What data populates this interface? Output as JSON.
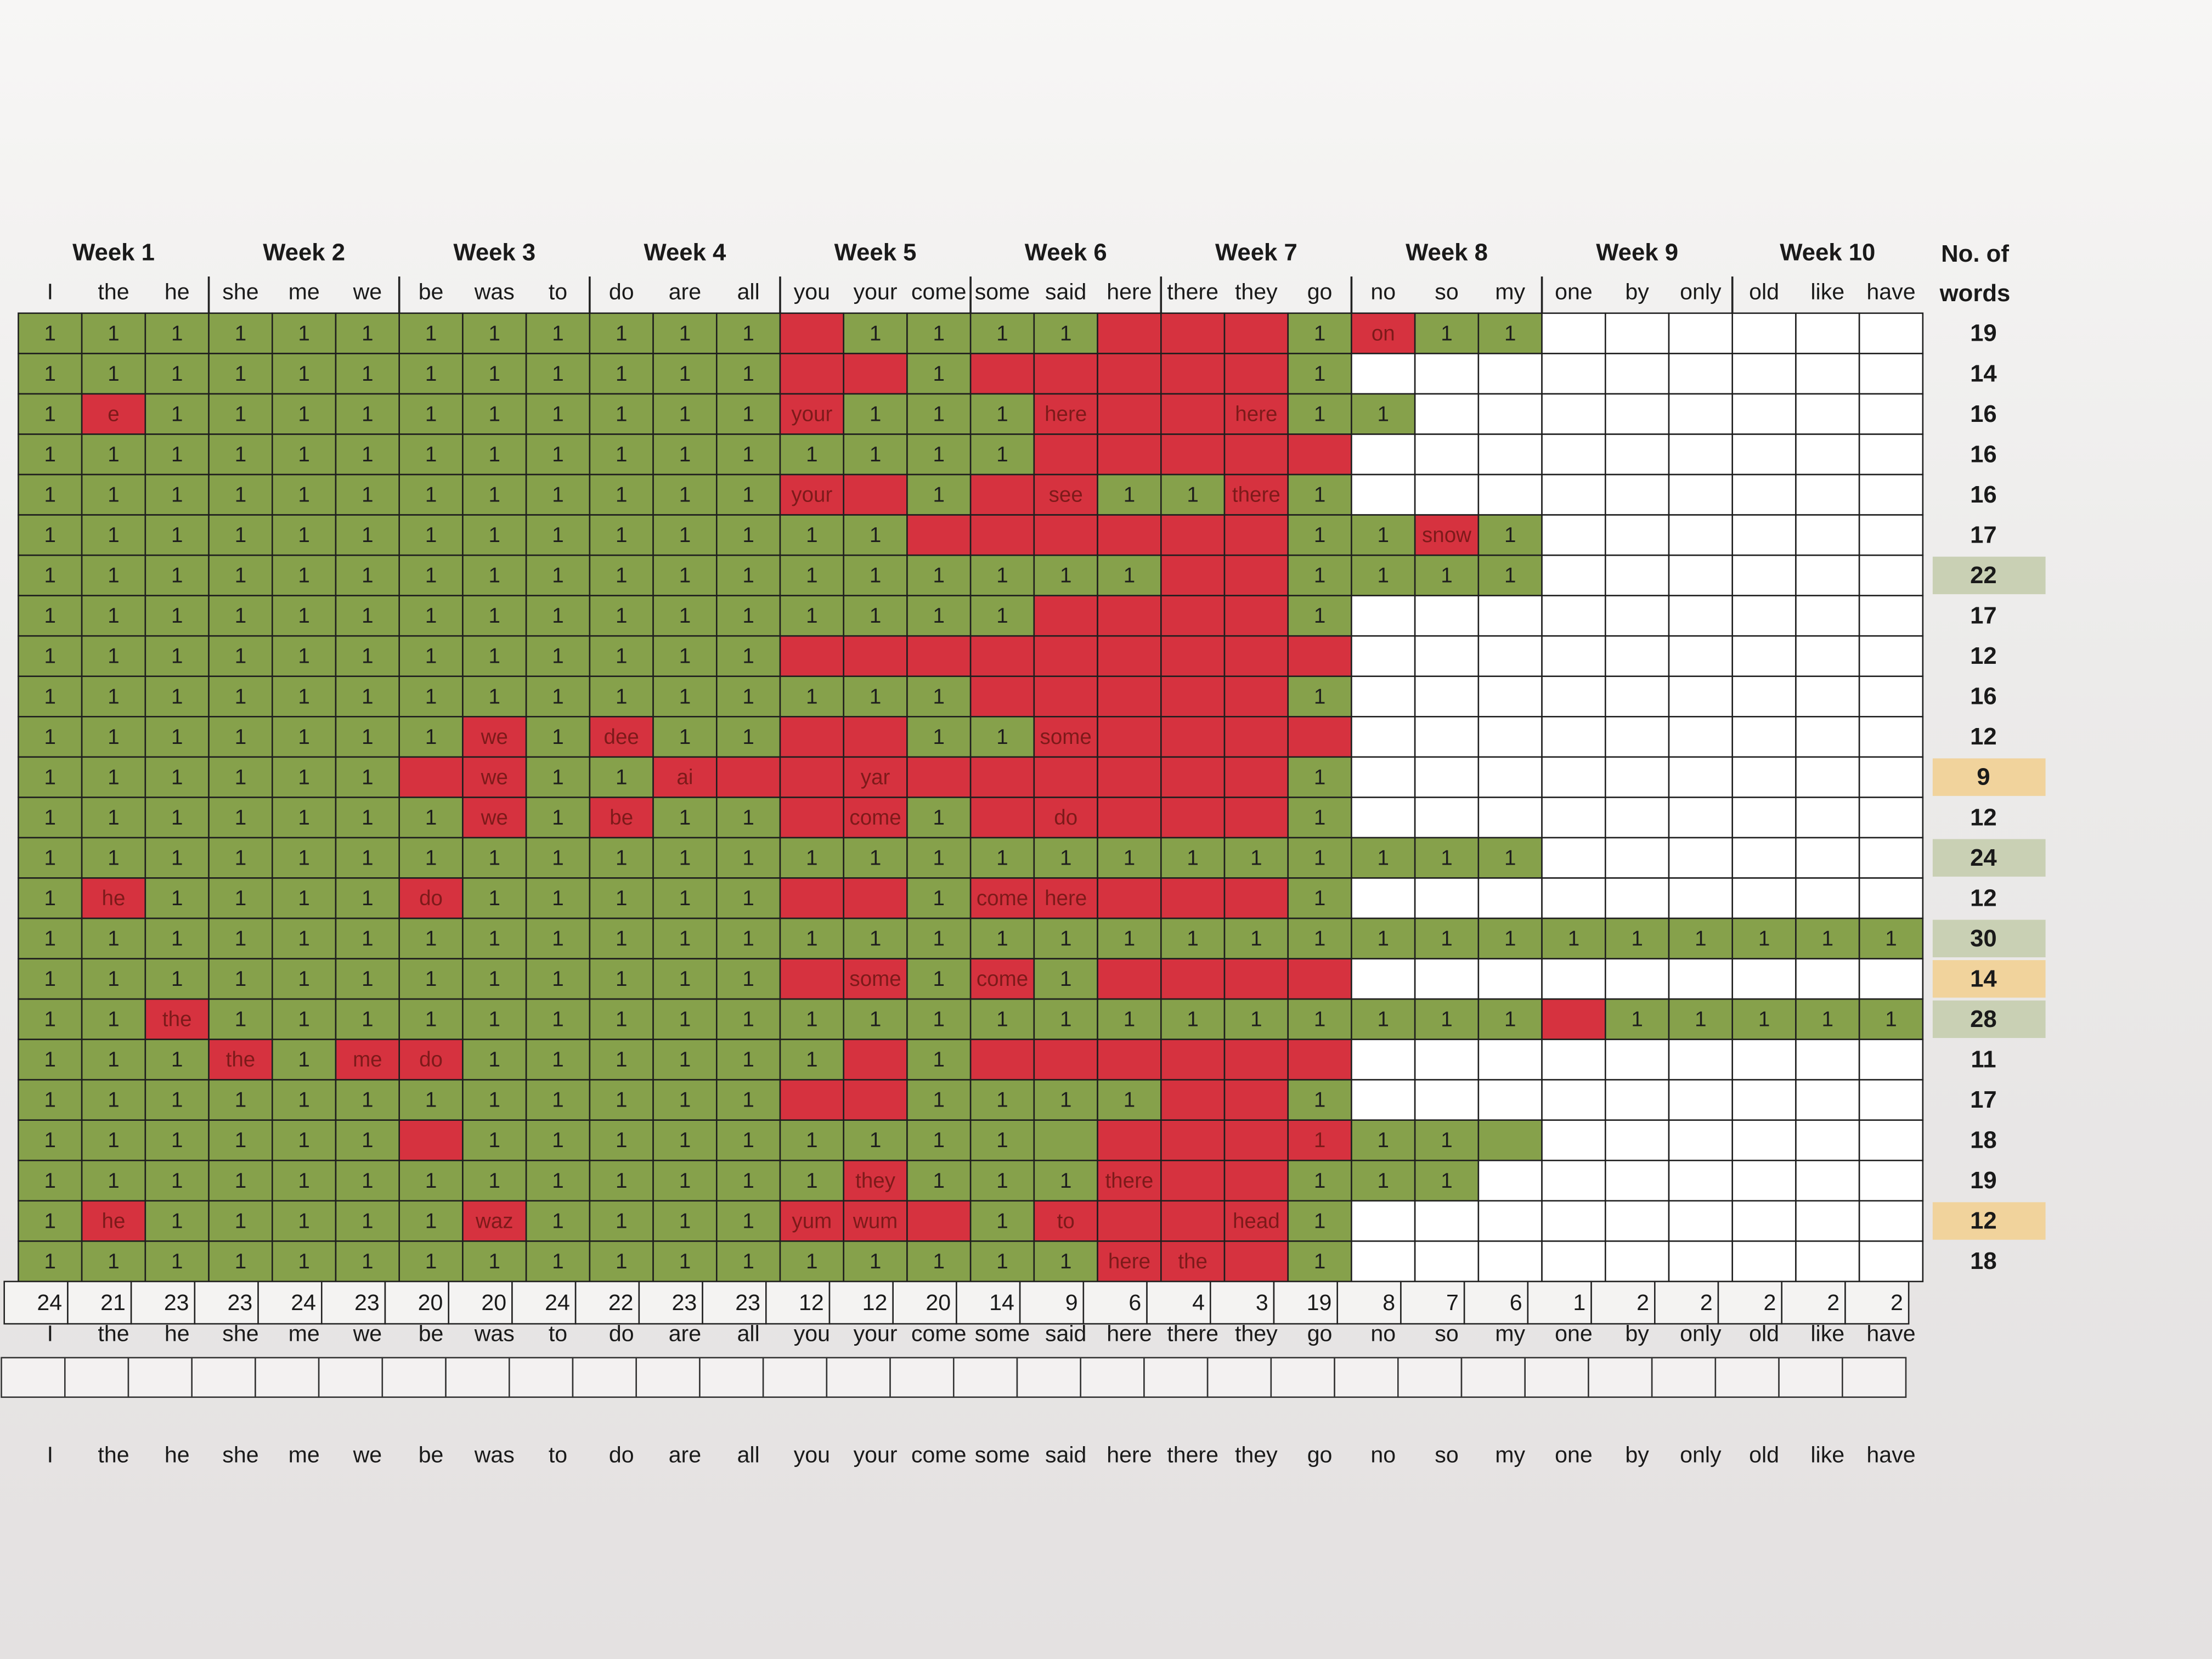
{
  "header": {
    "weeks": [
      "Week 1",
      "Week 2",
      "Week 3",
      "Week 4",
      "Week 5",
      "Week 6",
      "Week 7",
      "Week 8",
      "Week 9",
      "Week 10"
    ],
    "words": [
      "I",
      "the",
      "he",
      "she",
      "me",
      "we",
      "be",
      "was",
      "to",
      "do",
      "are",
      "all",
      "you",
      "your",
      "come",
      "some",
      "said",
      "here",
      "there",
      "they",
      "go",
      "no",
      "so",
      "my",
      "one",
      "by",
      "only",
      "old",
      "like",
      "have"
    ],
    "count_title": [
      "No. of",
      "words"
    ]
  },
  "colors": {
    "g": "#86a14b",
    "r": "#d6323f",
    "w": "#ffffff",
    "hg": "#c9d0b4",
    "ho": "#f1d39c"
  },
  "rows": [
    {
      "cells": [
        1,
        1,
        1,
        1,
        1,
        1,
        1,
        1,
        1,
        1,
        1,
        1,
        null,
        1,
        1,
        1,
        1,
        null,
        null,
        null,
        1,
        "on",
        1,
        1,
        null,
        null,
        null,
        null,
        null,
        null
      ],
      "status": "ggggggggggggrggggrrrgrggwwwwwww",
      "count": 19
    },
    {
      "cells": [
        1,
        1,
        1,
        1,
        1,
        1,
        1,
        1,
        1,
        1,
        1,
        1,
        null,
        null,
        1,
        null,
        null,
        null,
        null,
        null,
        1,
        null,
        null,
        null,
        null,
        null,
        null,
        null,
        null,
        null
      ],
      "status": "ggggggggggggrrgrrrrrgwwwwwwwwww",
      "count": 14
    },
    {
      "cells": [
        1,
        "e",
        1,
        1,
        1,
        1,
        1,
        1,
        1,
        1,
        1,
        1,
        "your",
        1,
        1,
        1,
        "here",
        null,
        null,
        "here",
        1,
        1,
        null,
        null,
        null,
        null,
        null,
        null,
        null,
        null
      ],
      "status": "grggggggggggrgggrrrrggwwwwwwwww",
      "count": 16
    },
    {
      "cells": [
        1,
        1,
        1,
        1,
        1,
        1,
        1,
        1,
        1,
        1,
        1,
        1,
        1,
        1,
        1,
        1,
        null,
        null,
        null,
        null,
        null,
        null,
        null,
        null,
        null,
        null,
        null,
        null,
        null,
        null
      ],
      "status": "ggggggggggggggggrrrrrwwwwwwwwww",
      "count": 16
    },
    {
      "cells": [
        1,
        1,
        1,
        1,
        1,
        1,
        1,
        1,
        1,
        1,
        1,
        1,
        "your",
        null,
        1,
        null,
        "see",
        1,
        1,
        "there",
        1,
        null,
        null,
        null,
        null,
        null,
        null,
        null,
        null,
        null
      ],
      "status": "ggggggggggggrrgrrggrgwwwwwwwwww",
      "count": 16
    },
    {
      "cells": [
        1,
        1,
        1,
        1,
        1,
        1,
        1,
        1,
        1,
        1,
        1,
        1,
        1,
        1,
        null,
        null,
        null,
        null,
        null,
        null,
        1,
        1,
        "snow",
        1,
        null,
        null,
        null,
        null,
        null,
        null
      ],
      "status": "ggggggggggggggrrrrrrggrgwwwwwww",
      "count": 17
    },
    {
      "cells": [
        1,
        1,
        1,
        1,
        1,
        1,
        1,
        1,
        1,
        1,
        1,
        1,
        1,
        1,
        1,
        1,
        1,
        1,
        null,
        null,
        1,
        1,
        1,
        1,
        null,
        null,
        null,
        null,
        null,
        null
      ],
      "status": "ggggggggggggggggggrrggggwwwwwwg",
      "count": 22
    },
    {
      "cells": [
        1,
        1,
        1,
        1,
        1,
        1,
        1,
        1,
        1,
        1,
        1,
        1,
        1,
        1,
        1,
        1,
        null,
        null,
        null,
        null,
        1,
        null,
        null,
        null,
        null,
        null,
        null,
        null,
        null,
        null
      ],
      "status": "ggggggggggggggggrrrrgwwwwwwwwww",
      "count": 17
    },
    {
      "cells": [
        1,
        1,
        1,
        1,
        1,
        1,
        1,
        1,
        1,
        1,
        1,
        1,
        null,
        null,
        null,
        null,
        null,
        null,
        null,
        null,
        null,
        null,
        null,
        null,
        null,
        null,
        null,
        null,
        null,
        null
      ],
      "status": "ggggggggggggrrrrrrrrrwwwwwwwwww",
      "count": 12
    },
    {
      "cells": [
        1,
        1,
        1,
        1,
        1,
        1,
        1,
        1,
        1,
        1,
        1,
        1,
        1,
        1,
        1,
        null,
        null,
        null,
        null,
        null,
        1,
        null,
        null,
        null,
        null,
        null,
        null,
        null,
        null,
        null
      ],
      "status": "gggggggggggggggrrrrrgwwwwwwwwww",
      "count": 16
    },
    {
      "cells": [
        1,
        1,
        1,
        1,
        1,
        1,
        1,
        "we",
        1,
        "dee",
        1,
        1,
        null,
        null,
        1,
        1,
        "some",
        null,
        null,
        null,
        null,
        null,
        null,
        null,
        null,
        null,
        null,
        null,
        null,
        null
      ],
      "status": "gggggggrgrggrrggrrrrrwwwwwwwwww",
      "count": 12
    },
    {
      "cells": [
        1,
        1,
        1,
        1,
        1,
        1,
        null,
        "we",
        1,
        1,
        "ai",
        null,
        null,
        "yar",
        null,
        null,
        null,
        null,
        null,
        null,
        1,
        null,
        null,
        null,
        null,
        null,
        null,
        null,
        null,
        null
      ],
      "status": "ggggggrrggrrrrrrrrrrgwwwwwwwwwo",
      "count": 9
    },
    {
      "cells": [
        1,
        1,
        1,
        1,
        1,
        1,
        1,
        "we",
        1,
        "be",
        1,
        1,
        null,
        "come",
        1,
        null,
        "do",
        null,
        null,
        null,
        1,
        null,
        null,
        null,
        null,
        null,
        null,
        null,
        null,
        null
      ],
      "status": "gggggggrgrggrrgrrrrrgwwwwwwwwww",
      "count": 12
    },
    {
      "cells": [
        1,
        1,
        1,
        1,
        1,
        1,
        1,
        1,
        1,
        1,
        1,
        1,
        1,
        1,
        1,
        1,
        1,
        1,
        1,
        1,
        1,
        1,
        1,
        1,
        null,
        null,
        null,
        null,
        null,
        null
      ],
      "status": "ggggggggggggggggggggggggwwwwwwg",
      "count": 24
    },
    {
      "cells": [
        1,
        "he",
        1,
        1,
        1,
        1,
        "do",
        1,
        1,
        1,
        1,
        1,
        null,
        null,
        1,
        "come",
        "here",
        null,
        null,
        null,
        1,
        null,
        null,
        null,
        null,
        null,
        null,
        null,
        null,
        null
      ],
      "status": "grggggrgggggrrgrrrrrgwwwwwwwwww",
      "count": 12
    },
    {
      "cells": [
        1,
        1,
        1,
        1,
        1,
        1,
        1,
        1,
        1,
        1,
        1,
        1,
        1,
        1,
        1,
        1,
        1,
        1,
        1,
        1,
        1,
        1,
        1,
        1,
        1,
        1,
        1,
        1,
        1,
        1
      ],
      "status": "ggggggggggggggggggggggggggggggg",
      "count": 30
    },
    {
      "cells": [
        1,
        1,
        1,
        1,
        1,
        1,
        1,
        1,
        1,
        1,
        1,
        1,
        null,
        "some",
        1,
        "come",
        1,
        null,
        null,
        null,
        null,
        null,
        null,
        null,
        null,
        null,
        null,
        null,
        null,
        null
      ],
      "status": "ggggggggggggrrgrgrrrrwwwwwwwwwo",
      "count": 14
    },
    {
      "cells": [
        1,
        1,
        "the",
        1,
        1,
        1,
        1,
        1,
        1,
        1,
        1,
        1,
        1,
        1,
        1,
        1,
        1,
        1,
        1,
        1,
        1,
        1,
        1,
        1,
        null,
        1,
        1,
        1,
        1,
        1
      ],
      "status": "ggrgggggggggggggggggggggrgggggg",
      "count": 28
    },
    {
      "cells": [
        1,
        1,
        1,
        "the",
        1,
        "me",
        "do",
        1,
        1,
        1,
        1,
        1,
        1,
        null,
        1,
        null,
        null,
        null,
        null,
        null,
        null,
        null,
        null,
        null,
        null,
        null,
        null,
        null,
        null,
        null
      ],
      "status": "gggrgrrggggggrgrrrrrrwwwwwwwwww",
      "count": 11
    },
    {
      "cells": [
        1,
        1,
        1,
        1,
        1,
        1,
        1,
        1,
        1,
        1,
        1,
        1,
        null,
        null,
        1,
        1,
        1,
        1,
        null,
        null,
        1,
        null,
        null,
        null,
        null,
        null,
        null,
        null,
        null,
        null
      ],
      "status": "ggggggggggggrrggggrrgwwwwwwwwww",
      "count": 17
    },
    {
      "cells": [
        1,
        1,
        1,
        1,
        1,
        1,
        null,
        1,
        1,
        1,
        1,
        1,
        1,
        1,
        1,
        1,
        null,
        null,
        null,
        null,
        1,
        1,
        1,
        null,
        null,
        null,
        null,
        null,
        null,
        null
      ],
      "status": "ggggggrggggggggggrrrrgggwwwwwww",
      "count": 18
    },
    {
      "cells": [
        1,
        1,
        1,
        1,
        1,
        1,
        1,
        1,
        1,
        1,
        1,
        1,
        1,
        "they",
        1,
        1,
        1,
        "there",
        null,
        null,
        1,
        1,
        1,
        null,
        null,
        null,
        null,
        null,
        null,
        null
      ],
      "status": "gggggggggggggrgggrrrgggwwwwwwww",
      "count": 19
    },
    {
      "cells": [
        1,
        "he",
        1,
        1,
        1,
        1,
        1,
        "waz",
        1,
        1,
        1,
        1,
        "yum",
        "wum",
        null,
        1,
        "to",
        null,
        null,
        "head",
        1,
        null,
        null,
        null,
        null,
        null,
        null,
        null,
        null,
        null
      ],
      "status": "grgggggrggggrrrgrrrrgwwwwwwwwwo",
      "count": 12
    },
    {
      "cells": [
        1,
        1,
        1,
        1,
        1,
        1,
        1,
        1,
        1,
        1,
        1,
        1,
        1,
        1,
        1,
        1,
        1,
        "here",
        "the",
        null,
        1,
        null,
        null,
        null,
        null,
        null,
        null,
        null,
        null,
        null
      ],
      "status": "gggggggggggggggggrrrgwwwwwwwwww",
      "count": 18
    }
  ],
  "totals": [
    24,
    21,
    23,
    23,
    24,
    23,
    20,
    20,
    24,
    22,
    23,
    23,
    12,
    12,
    20,
    14,
    9,
    6,
    4,
    3,
    19,
    8,
    7,
    6,
    1,
    2,
    2,
    2,
    2,
    2
  ]
}
